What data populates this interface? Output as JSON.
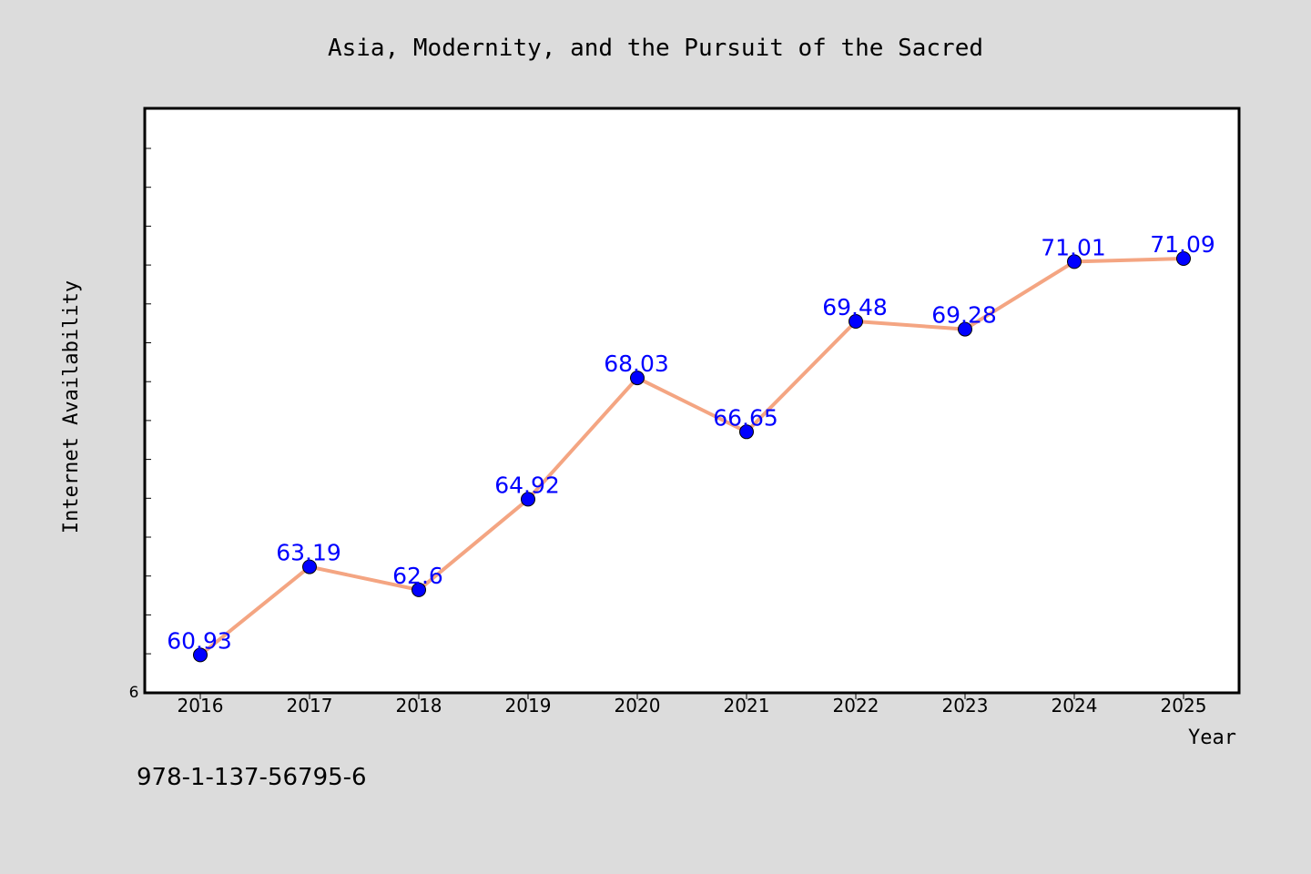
{
  "chart_data": {
    "type": "line",
    "title": "Asia, Modernity, and the Pursuit of the Sacred",
    "xlabel": "Year",
    "ylabel": "Internet Availability",
    "categories": [
      "2016",
      "2017",
      "2018",
      "2019",
      "2020",
      "2021",
      "2022",
      "2023",
      "2024",
      "2025"
    ],
    "series": [
      {
        "values": [
          60.93,
          63.19,
          62.6,
          64.92,
          68.03,
          66.65,
          69.48,
          69.28,
          71.01,
          71.09
        ],
        "labels": [
          "60.93",
          "63.19",
          "62.6",
          "64.92",
          "68.03",
          "66.65",
          "69.48",
          "69.28",
          "71.01",
          "71.09"
        ],
        "line_color": "#f4a582",
        "marker_color": "#0000ff",
        "label_color": "#0000ff"
      }
    ],
    "y_tick_label": "6",
    "ylim": [
      59.96,
      74.94
    ],
    "grid": false,
    "legend": "none",
    "background": "#dcdcdc",
    "plot_background": "#ffffff"
  },
  "footer": {
    "isbn": "978-1-137-56795-6"
  }
}
